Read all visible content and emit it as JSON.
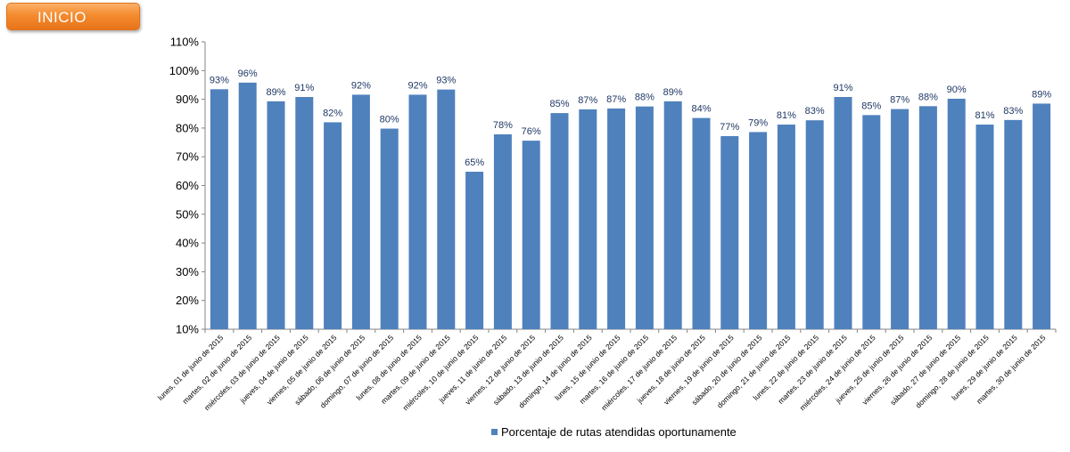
{
  "nav": {
    "inicio_label": "INICIO"
  },
  "chart_data": {
    "type": "bar",
    "categories": [
      "lunes, 01 de junio de 2015",
      "martes, 02 de junio de 2015",
      "miércoles, 03 de junio de 2015",
      "jueves, 04 de junio de 2015",
      "viernes, 05 de junio de 2015",
      "sábado, 06 de junio de 2015",
      "domingo, 07 de junio de 2015",
      "lunes, 08 de junio de 2015",
      "martes, 09 de junio de 2015",
      "miércoles, 10 de junio de 2015",
      "jueves, 11 de junio de 2015",
      "viernes, 12 de junio de 2015",
      "sábado, 13 de junio de 2015",
      "domingo, 14 de junio de 2015",
      "lunes, 15 de junio de 2015",
      "martes, 16 de junio de 2015",
      "miércoles, 17 de junio de 2015",
      "jueves, 18 de junio de 2015",
      "viernes, 19 de junio de 2015",
      "sábado, 20 de junio de 2015",
      "domingo, 21 de junio de 2015",
      "lunes, 22 de junio de 2015",
      "martes, 23 de junio de 2015",
      "miércoles, 24 de junio de 2015",
      "jueves, 25 de junio de 2015",
      "viernes, 26 de junio de 2015",
      "sábado, 27 de junio de 2015",
      "domingo, 28 de junio de 2015",
      "lunes, 29 de junio de 2015",
      "martes, 30 de junio de 2015"
    ],
    "series": [
      {
        "name": "Porcentaje de rutas atendidas oportunamente",
        "values": [
          93.5,
          95.8,
          89.3,
          90.8,
          82.0,
          91.6,
          79.8,
          91.6,
          93.4,
          64.8,
          77.8,
          75.6,
          85.2,
          86.5,
          86.8,
          87.5,
          89.3,
          83.5,
          77.2,
          78.6,
          81.2,
          82.7,
          90.8,
          84.5,
          86.6,
          87.6,
          90.2,
          81.2,
          82.8,
          88.5
        ],
        "labels": [
          "93%",
          "96%",
          "89%",
          "91%",
          "82%",
          "92%",
          "80%",
          "92%",
          "93%",
          "65%",
          "78%",
          "76%",
          "85%",
          "87%",
          "87%",
          "88%",
          "89%",
          "84%",
          "77%",
          "79%",
          "81%",
          "83%",
          "91%",
          "85%",
          "87%",
          "88%",
          "90%",
          "81%",
          "83%",
          "89%"
        ]
      }
    ],
    "ylim": [
      10,
      110
    ],
    "yticks": [
      "10%",
      "20%",
      "30%",
      "40%",
      "50%",
      "60%",
      "70%",
      "80%",
      "90%",
      "100%",
      "110%"
    ],
    "ytick_values": [
      10,
      20,
      30,
      40,
      50,
      60,
      70,
      80,
      90,
      100,
      110
    ],
    "bar_color": "#4f81bd",
    "label_color": "#1f3864",
    "grid": false,
    "legend_position": "bottom"
  }
}
